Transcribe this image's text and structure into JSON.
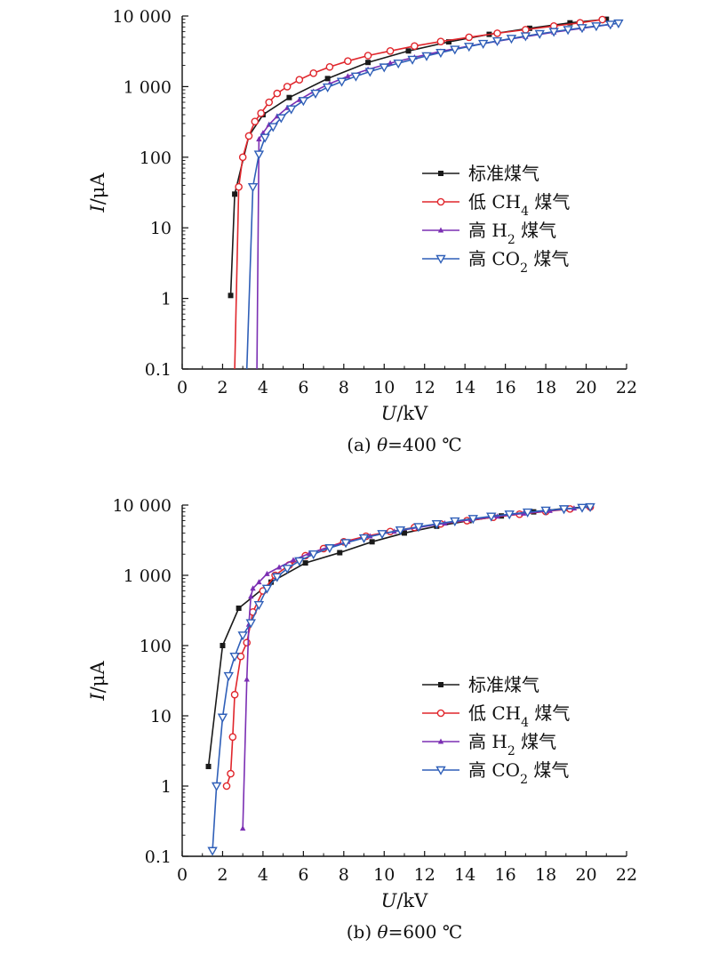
{
  "colors": {
    "standard": "#1a1a1a",
    "low_ch4": "#e0262c",
    "high_h2": "#7b2fb3",
    "high_co2": "#2f5fb8",
    "axis": "#111111"
  },
  "chart_data": [
    {
      "type": "line",
      "panel": "a",
      "caption": "(a) θ=400 ℃",
      "xlabel": "U/kV",
      "ylabel": "I/μA",
      "xlim": [
        0,
        22
      ],
      "ylim": [
        0.1,
        10000
      ],
      "yscale": "log",
      "xticks": [
        "0",
        "2",
        "4",
        "6",
        "8",
        "10",
        "12",
        "14",
        "16",
        "18",
        "20",
        "22"
      ],
      "yticks": [
        "0.1",
        "1",
        "10",
        "100",
        "1 000",
        "10 000"
      ],
      "legend_position": "center-right",
      "series": [
        {
          "name": "标准煤气",
          "marker": "square",
          "color_key": "standard",
          "x": [
            2.4,
            2.6,
            3.3,
            4.0,
            5.3,
            7.2,
            9.2,
            11.2,
            13.2,
            15.2,
            17.2,
            19.2,
            21.0
          ],
          "y": [
            1.1,
            30,
            200,
            400,
            700,
            1300,
            2200,
            3200,
            4300,
            5500,
            6700,
            8000,
            9000
          ]
        },
        {
          "name": "低 CH4 煤气",
          "marker": "circle",
          "color_key": "low_ch4",
          "x": [
            2.6,
            2.8,
            3.0,
            3.3,
            3.6,
            3.9,
            4.3,
            4.7,
            5.2,
            5.8,
            6.5,
            7.3,
            8.2,
            9.2,
            10.3,
            11.5,
            12.8,
            14.2,
            15.6,
            17.0,
            18.4,
            19.7,
            20.8
          ],
          "y": [
            0.1,
            38,
            100,
            200,
            320,
            420,
            600,
            800,
            1000,
            1250,
            1550,
            1900,
            2300,
            2750,
            3200,
            3750,
            4350,
            5000,
            5700,
            6400,
            7200,
            8000,
            8900
          ]
        },
        {
          "name": "高 H2 煤气",
          "marker": "triangle-up",
          "color_key": "high_h2",
          "x": [
            3.7,
            3.8,
            4.0,
            4.3,
            4.7,
            5.2,
            5.8,
            6.5,
            7.3,
            8.2,
            9.2,
            10.3,
            11.5,
            12.8,
            14.2,
            15.6,
            17.0,
            18.4,
            19.8,
            21.2
          ],
          "y": [
            0.1,
            180,
            220,
            290,
            380,
            500,
            650,
            850,
            1100,
            1400,
            1750,
            2150,
            2600,
            3150,
            3750,
            4400,
            5100,
            5900,
            6700,
            7600
          ]
        },
        {
          "name": "高 CO2 煤气",
          "marker": "triangle-down",
          "color_key": "high_co2",
          "x": [
            3.2,
            3.5,
            3.8,
            4.1,
            4.5,
            4.9,
            5.4,
            6.0,
            6.6,
            7.2,
            7.9,
            8.6,
            9.3,
            10.0,
            10.7,
            11.4,
            12.1,
            12.8,
            13.5,
            14.2,
            14.9,
            15.6,
            16.3,
            17.0,
            17.7,
            18.4,
            19.1,
            19.8,
            20.5,
            21.2,
            21.6
          ],
          "y": [
            0.1,
            38,
            110,
            190,
            270,
            360,
            480,
            630,
            800,
            980,
            1180,
            1400,
            1630,
            1880,
            2140,
            2420,
            2720,
            3030,
            3360,
            3700,
            4060,
            4430,
            4800,
            5200,
            5600,
            6000,
            6400,
            6800,
            7200,
            7600,
            7900
          ]
        }
      ]
    },
    {
      "type": "line",
      "panel": "b",
      "caption": "(b) θ=600 ℃",
      "xlabel": "U/kV",
      "ylabel": "I/μA",
      "xlim": [
        0,
        22
      ],
      "ylim": [
        0.1,
        10000
      ],
      "yscale": "log",
      "xticks": [
        "0",
        "2",
        "4",
        "6",
        "8",
        "10",
        "12",
        "14",
        "16",
        "18",
        "20",
        "22"
      ],
      "yticks": [
        "0.1",
        "1",
        "10",
        "100",
        "1 000",
        "10 000"
      ],
      "legend_position": "center-right",
      "series": [
        {
          "name": "标准煤气",
          "marker": "square",
          "color_key": "standard",
          "x": [
            1.3,
            2.0,
            2.8,
            4.4,
            6.1,
            7.8,
            9.4,
            11.0,
            12.6,
            14.2,
            15.8,
            17.4,
            19.0,
            20.2
          ],
          "y": [
            1.9,
            100,
            340,
            800,
            1500,
            2100,
            3000,
            4000,
            5000,
            6000,
            7000,
            8000,
            9000,
            9500
          ]
        },
        {
          "name": "低 CH4 煤气",
          "marker": "circle",
          "color_key": "low_ch4",
          "x": [
            2.2,
            2.4,
            2.5,
            2.6,
            2.9,
            3.2,
            3.5,
            4.0,
            4.6,
            5.3,
            6.1,
            7.0,
            8.0,
            9.1,
            10.3,
            11.5,
            12.8,
            14.1,
            15.4,
            16.7,
            18.0,
            19.2,
            20.2
          ],
          "y": [
            1.0,
            1.5,
            5,
            20,
            70,
            110,
            300,
            600,
            1000,
            1400,
            1900,
            2400,
            3000,
            3600,
            4200,
            4800,
            5400,
            6000,
            6700,
            7400,
            8100,
            8800,
            9400
          ]
        },
        {
          "name": "高 H2 煤气",
          "marker": "triangle-up",
          "color_key": "high_h2",
          "x": [
            3.0,
            3.2,
            3.3,
            3.4,
            3.5,
            3.8,
            4.2,
            4.8,
            5.5,
            6.3,
            7.2,
            8.2,
            9.3,
            10.5,
            11.7,
            13.0,
            14.3,
            15.6,
            16.9,
            18.2,
            19.4,
            20.2
          ],
          "y": [
            0.25,
            33,
            200,
            500,
            650,
            800,
            1050,
            1300,
            1650,
            2050,
            2500,
            3000,
            3600,
            4200,
            4800,
            5500,
            6200,
            6900,
            7600,
            8300,
            9000,
            9500
          ]
        },
        {
          "name": "高 CO2 煤气",
          "marker": "triangle-down",
          "color_key": "high_co2",
          "x": [
            1.5,
            1.7,
            2.0,
            2.3,
            2.6,
            3.0,
            3.4,
            3.8,
            4.2,
            4.7,
            5.2,
            5.8,
            6.5,
            7.3,
            8.1,
            9.0,
            9.9,
            10.8,
            11.7,
            12.6,
            13.5,
            14.4,
            15.3,
            16.2,
            17.1,
            18.0,
            18.9,
            19.8,
            20.2
          ],
          "y": [
            0.12,
            1.0,
            9.5,
            37,
            70,
            140,
            210,
            380,
            650,
            950,
            1250,
            1600,
            2000,
            2450,
            2900,
            3400,
            3900,
            4400,
            4900,
            5400,
            5900,
            6400,
            6900,
            7400,
            7900,
            8400,
            8800,
            9200,
            9400
          ]
        }
      ]
    }
  ]
}
